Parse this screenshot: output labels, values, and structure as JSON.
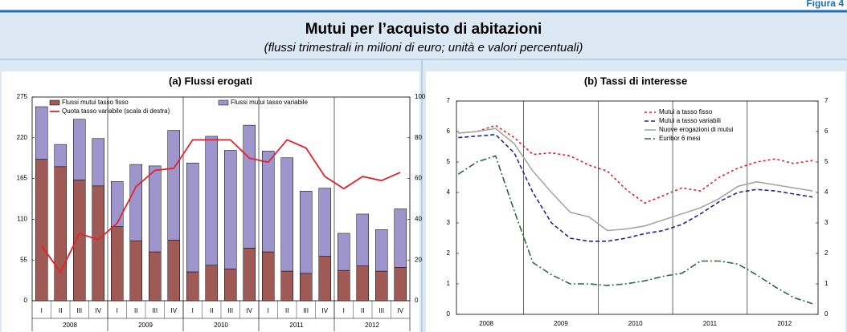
{
  "figure_label": "Figura 4",
  "title": "Mutui per l’acquisto di abitazioni",
  "subtitle": "(flussi trimestrali in milioni di euro; unità e valori percentuali)",
  "chart_data": [
    {
      "type": "bar",
      "stacked": true,
      "title": "(a) Flussi erogati",
      "categories": [
        "I",
        "II",
        "III",
        "IV",
        "I",
        "II",
        "III",
        "IV",
        "I",
        "II",
        "III",
        "IV",
        "I",
        "II",
        "III",
        "IV",
        "I",
        "II",
        "III",
        "IV"
      ],
      "years": [
        "2008",
        "2009",
        "2010",
        "2011",
        "2012"
      ],
      "ylim": [
        0,
        275
      ],
      "yticks": [
        0,
        55,
        110,
        165,
        220,
        275
      ],
      "y2lim": [
        0,
        100
      ],
      "y2ticks": [
        0,
        20,
        40,
        60,
        80,
        100
      ],
      "series": [
        {
          "name": "Flussi mutui tasso fisso",
          "type": "bar",
          "color": "#a05a56",
          "values": [
            191,
            181,
            163,
            155,
            100,
            81,
            66,
            82,
            39,
            48,
            43,
            71,
            66,
            40,
            37,
            60,
            41,
            47,
            40,
            45
          ]
        },
        {
          "name": "Flussi mutui tasso variabile",
          "type": "bar",
          "color": "#9d95cb",
          "values": [
            71,
            30,
            82,
            64,
            61,
            103,
            116,
            148,
            147,
            174,
            160,
            166,
            136,
            153,
            111,
            92,
            50,
            70,
            56,
            79
          ]
        },
        {
          "name": "Quota tasso variabile (scala di destra)",
          "type": "line",
          "axis": "y2",
          "color": "#e3222b",
          "values": [
            27,
            14,
            33,
            30,
            38,
            56,
            64,
            65,
            79,
            79,
            79,
            70,
            68,
            79,
            75,
            61,
            55,
            61,
            59,
            63
          ]
        }
      ]
    },
    {
      "type": "line",
      "title": "(b) Tassi di interesse",
      "x": [
        2008.125,
        2008.375,
        2008.625,
        2008.875,
        2009.125,
        2009.375,
        2009.625,
        2009.875,
        2010.125,
        2010.375,
        2010.625,
        2010.875,
        2011.125,
        2011.375,
        2011.625,
        2011.875,
        2012.125,
        2012.375,
        2012.625,
        2012.875
      ],
      "xlim": [
        2008.1,
        2012.95
      ],
      "xticks": [
        {
          "value": 2008.5,
          "label": "2008"
        },
        {
          "value": 2009.5,
          "label": "2009"
        },
        {
          "value": 2010.5,
          "label": "2010"
        },
        {
          "value": 2011.5,
          "label": "2011"
        },
        {
          "value": 2012.5,
          "label": "2012"
        }
      ],
      "xgrid": [
        2009,
        2010,
        2011,
        2012
      ],
      "ylim": [
        0,
        7
      ],
      "yticks": [
        0,
        1,
        2,
        3,
        4,
        5,
        6,
        7
      ],
      "series": [
        {
          "name": "Mutui a tasso fisso",
          "color": "#e3222b",
          "dash": "dot",
          "values": [
            5.95,
            6.0,
            6.2,
            5.8,
            5.25,
            5.3,
            5.2,
            4.9,
            4.7,
            4.1,
            3.65,
            3.9,
            4.15,
            4.05,
            4.5,
            4.8,
            5.0,
            5.1,
            4.95,
            5.05
          ]
        },
        {
          "name": "Mutui a tasso variabili",
          "color": "#1f2a8c",
          "dash": "dash",
          "values": [
            5.8,
            5.85,
            5.9,
            5.3,
            4.0,
            3.0,
            2.5,
            2.4,
            2.4,
            2.5,
            2.65,
            2.75,
            2.95,
            3.3,
            3.7,
            4.0,
            4.1,
            4.05,
            3.95,
            3.85
          ]
        },
        {
          "name": "Nuove erogazioni di mutui",
          "color": "#a6a6a6",
          "dash": "solid",
          "values": [
            5.95,
            6.0,
            6.1,
            5.6,
            4.7,
            4.0,
            3.35,
            3.2,
            2.75,
            2.8,
            2.9,
            3.1,
            3.3,
            3.5,
            3.8,
            4.2,
            4.35,
            4.25,
            4.15,
            4.05
          ]
        },
        {
          "name": "Euribor 6 mesi",
          "color": "#2e6b3a",
          "dash": "dashdot",
          "values": [
            4.6,
            5.0,
            5.2,
            3.4,
            1.7,
            1.3,
            1.0,
            1.0,
            0.95,
            1.0,
            1.1,
            1.25,
            1.35,
            1.75,
            1.75,
            1.65,
            1.3,
            0.9,
            0.55,
            0.35
          ]
        }
      ]
    }
  ]
}
